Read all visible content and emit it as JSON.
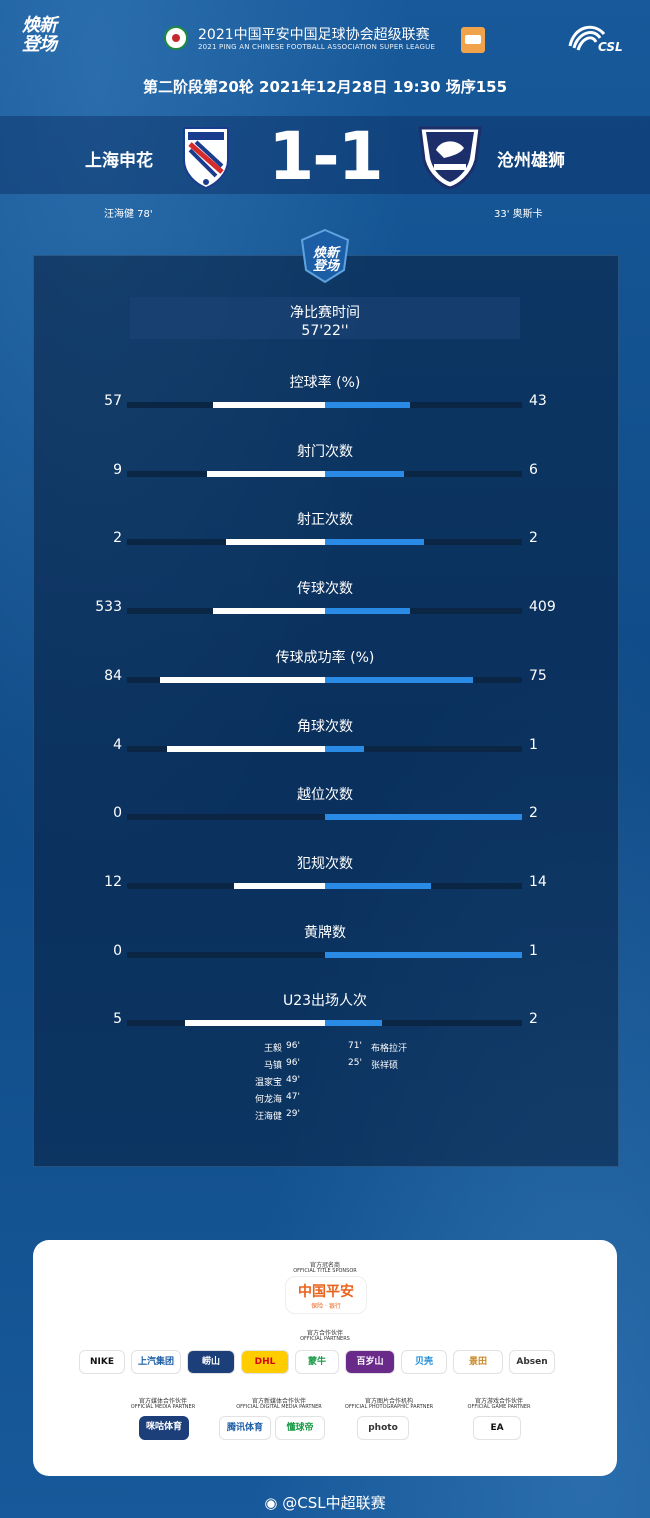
{
  "header": {
    "brand": "焕新登场",
    "league_cn": "2021中国平安中国足球协会超级联赛",
    "league_en": "2021 PING AN CHINESE FOOTBALL ASSOCIATION SUPER LEAGUE",
    "csl": "CSL",
    "round_info": "第二阶段第20轮  2021年12月28日 19:30 场序155"
  },
  "match": {
    "home_team": "上海申花",
    "away_team": "沧州雄狮",
    "score": "1-1",
    "home_scorer": "汪海健  78'",
    "away_scorer": "33'  奥斯卡"
  },
  "panel": {
    "shield_text": "焕新登场",
    "net_time_label": "净比赛时间",
    "net_time_value": "57'22''"
  },
  "stats": [
    {
      "label": "控球率 (%)",
      "home": "57",
      "away": "43",
      "home_frac": 0.57,
      "away_frac": 0.43
    },
    {
      "label": "射门次数",
      "home": "9",
      "away": "6",
      "home_frac": 0.6,
      "away_frac": 0.4
    },
    {
      "label": "射正次数",
      "home": "2",
      "away": "2",
      "home_frac": 0.5,
      "away_frac": 0.5
    },
    {
      "label": "传球次数",
      "home": "533",
      "away": "409",
      "home_frac": 0.57,
      "away_frac": 0.43
    },
    {
      "label": "传球成功率 (%)",
      "home": "84",
      "away": "75",
      "home_frac": 0.84,
      "away_frac": 0.75
    },
    {
      "label": "角球次数",
      "home": "4",
      "away": "1",
      "home_frac": 0.8,
      "away_frac": 0.2
    },
    {
      "label": "越位次数",
      "home": "0",
      "away": "2",
      "home_frac": 0.0,
      "away_frac": 1.0
    },
    {
      "label": "犯规次数",
      "home": "12",
      "away": "14",
      "home_frac": 0.46,
      "away_frac": 0.54
    },
    {
      "label": "黄牌数",
      "home": "0",
      "away": "1",
      "home_frac": 0.0,
      "away_frac": 1.0
    },
    {
      "label": "U23出场人次",
      "home": "5",
      "away": "2",
      "home_frac": 0.71,
      "away_frac": 0.29
    }
  ],
  "u23_home": [
    {
      "name": "王毅",
      "min": "96'"
    },
    {
      "name": "马镇",
      "min": "96'"
    },
    {
      "name": "温家宝",
      "min": "49'"
    },
    {
      "name": "何龙海",
      "min": "47'"
    },
    {
      "name": "汪海健",
      "min": "29'"
    }
  ],
  "u23_away": [
    {
      "min": "71'",
      "name": "布格拉汗"
    },
    {
      "min": "25'",
      "name": "张祥硕"
    }
  ],
  "sponsors": {
    "title_label_cn": "官方冠名商",
    "title_label_en": "OFFICIAL TITLE SPONSOR",
    "title_sponsor": "中国平安",
    "title_sponsor_sub": "保险 · 银行",
    "partners_label_cn": "官方合作伙伴",
    "partners_label_en": "OFFICIAL PARTNERS",
    "partners": [
      "NIKE",
      "上汽集团",
      "崂山",
      "DHL",
      "蒙牛",
      "百岁山",
      "贝壳",
      "景田",
      "Absen"
    ],
    "media_label_cn": "官方媒体合作伙伴",
    "media_label_en": "OFFICIAL MEDIA PARTNER",
    "media": "咪咕体育",
    "new_media_label_cn": "官方新媒体合作伙伴",
    "new_media_label_en": "OFFICIAL DIGITAL MEDIA PARTNER",
    "new_media": [
      "腾讯体育",
      "懂球帝"
    ],
    "photo_label_cn": "官方图片合作机构",
    "photo_label_en": "OFFICIAL PHOTOGRAPHIC PARTNER",
    "photo": "photo",
    "game_label_cn": "官方游戏合作伙伴",
    "game_label_en": "OFFICIAL GAME PARTNER",
    "game": "EA"
  },
  "footer": {
    "weibo": "@CSL中超联赛"
  },
  "colors": {
    "background": "#14538f",
    "home_bar": "#ffffff",
    "away_bar": "#2a8be6",
    "track": "#0b2544"
  }
}
